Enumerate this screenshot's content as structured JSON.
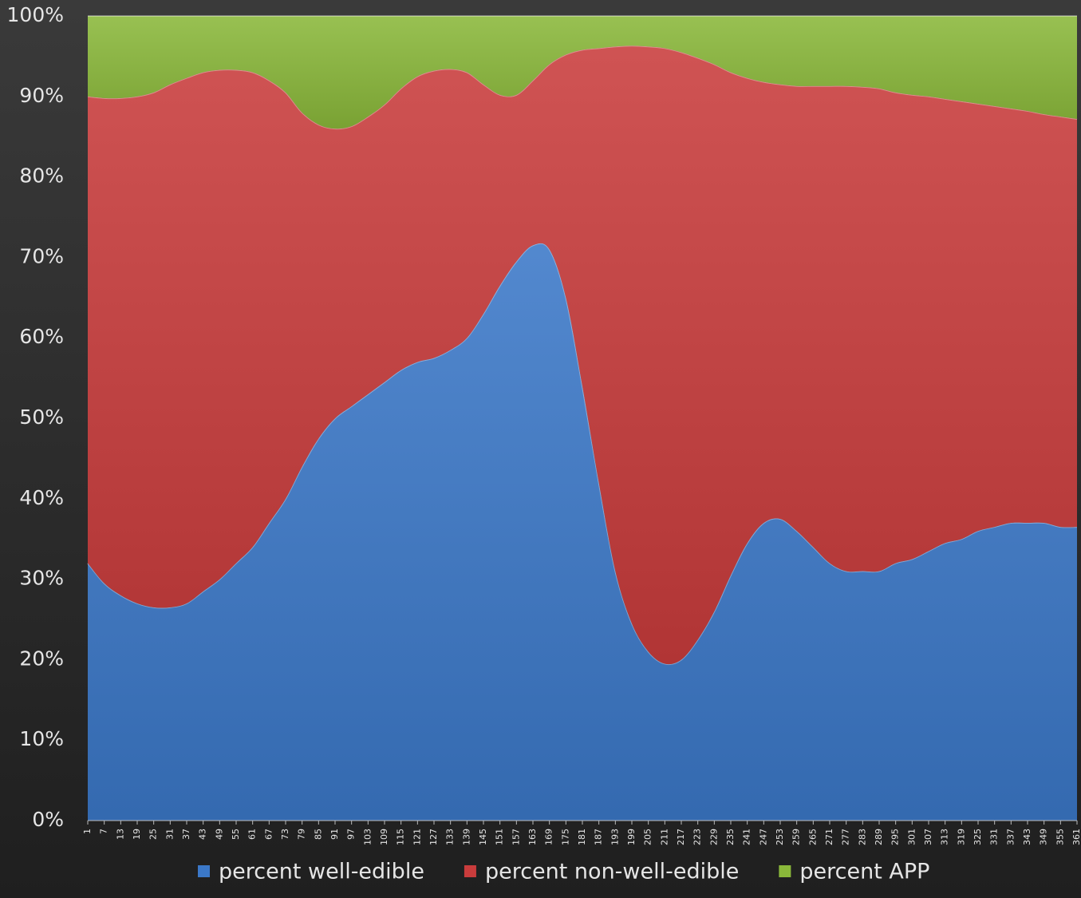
{
  "chart_data": {
    "type": "stacked_area",
    "x": [
      1,
      7,
      13,
      19,
      25,
      31,
      37,
      43,
      49,
      55,
      61,
      67,
      73,
      79,
      85,
      91,
      97,
      103,
      109,
      115,
      121,
      127,
      133,
      139,
      145,
      151,
      157,
      163,
      169,
      175,
      181,
      187,
      193,
      199,
      205,
      211,
      217,
      223,
      229,
      235,
      241,
      247,
      253,
      259,
      265,
      271,
      277,
      283,
      289,
      295,
      301,
      307,
      313,
      319,
      325,
      331,
      337,
      343,
      349,
      355,
      361
    ],
    "xticks": [
      1,
      7,
      13,
      19,
      25,
      31,
      37,
      43,
      49,
      55,
      61,
      67,
      73,
      79,
      85,
      91,
      97,
      103,
      109,
      115,
      121,
      127,
      133,
      139,
      145,
      151,
      157,
      163,
      169,
      175,
      181,
      187,
      193,
      199,
      205,
      211,
      217,
      223,
      229,
      235,
      241,
      247,
      253,
      259,
      265,
      271,
      277,
      283,
      289,
      295,
      301,
      307,
      313,
      319,
      325,
      331,
      337,
      343,
      349,
      355,
      361
    ],
    "xlim": [
      1,
      361
    ],
    "ylim": [
      0,
      100
    ],
    "yticks": [
      {
        "value": 0,
        "label": "0%"
      },
      {
        "value": 10,
        "label": "10%"
      },
      {
        "value": 20,
        "label": "20%"
      },
      {
        "value": 30,
        "label": "30%"
      },
      {
        "value": 40,
        "label": "40%"
      },
      {
        "value": 50,
        "label": "50%"
      },
      {
        "value": 60,
        "label": "60%"
      },
      {
        "value": 70,
        "label": "70%"
      },
      {
        "value": 80,
        "label": "80%"
      },
      {
        "value": 90,
        "label": "90%"
      },
      {
        "value": 100,
        "label": "100%"
      }
    ],
    "legend": "bottom",
    "series": [
      {
        "name": "percent well-edible",
        "color": "#3b78c8",
        "values": [
          32,
          29.5,
          28,
          27,
          26.5,
          26.5,
          27,
          28.5,
          30,
          32,
          34,
          37,
          40,
          44,
          47.5,
          50,
          51.5,
          53,
          54.5,
          56,
          57,
          57.5,
          58.5,
          60,
          63,
          66.5,
          69.5,
          71.5,
          71,
          65,
          54,
          42,
          31,
          24.5,
          21,
          19.5,
          20,
          22.5,
          26,
          30.5,
          34.5,
          37,
          37.5,
          36,
          34,
          32,
          31,
          31,
          31,
          32,
          32.5,
          33.5,
          34.5,
          35,
          36,
          36.5,
          37,
          37,
          37,
          36.5,
          36.5
        ]
      },
      {
        "name": "percent non-well-edible",
        "color": "#c93c3c",
        "values": [
          58,
          60.3,
          61.8,
          63,
          64,
          65,
          65.3,
          64.5,
          63.3,
          61.3,
          59,
          55,
          50.5,
          44,
          39,
          36,
          34.8,
          34.5,
          34.5,
          35,
          35.5,
          35.7,
          34.9,
          33,
          28.5,
          23.7,
          20.7,
          20.5,
          23,
          30.2,
          41.8,
          54,
          65.2,
          71.8,
          75.2,
          76.5,
          75.5,
          72.3,
          68,
          62.5,
          57.8,
          54.8,
          54,
          55.3,
          57.3,
          59.3,
          60.3,
          60.2,
          60,
          58.5,
          57.7,
          56.5,
          55.2,
          54.4,
          53.1,
          52.3,
          51.5,
          51.2,
          50.8,
          51,
          50.7
        ]
      },
      {
        "name": "percent APP",
        "color": "#8ab83a",
        "values": [
          10,
          10.2,
          10.2,
          10,
          9.5,
          8.5,
          7.7,
          7,
          6.7,
          6.7,
          7,
          8,
          9.5,
          12,
          13.5,
          14,
          13.7,
          12.5,
          11,
          9,
          7.5,
          6.8,
          6.6,
          7,
          8.5,
          9.8,
          9.8,
          8,
          6,
          4.8,
          4.2,
          4,
          3.8,
          3.7,
          3.8,
          4,
          4.5,
          5.2,
          6,
          7,
          7.7,
          8.2,
          8.5,
          8.7,
          8.7,
          8.7,
          8.7,
          8.8,
          9,
          9.5,
          9.8,
          10,
          10.3,
          10.6,
          10.9,
          11.2,
          11.5,
          11.8,
          12.2,
          12.5,
          12.8
        ]
      }
    ]
  }
}
